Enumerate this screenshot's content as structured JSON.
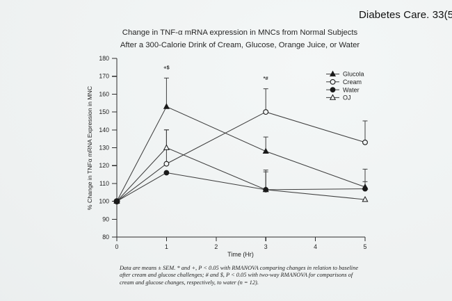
{
  "colors": {
    "background": "#eef1f1",
    "ink": "#1a1a1a",
    "axis": "#2b2b2b",
    "line": "#3e3e3e",
    "open_marker_fill": "#f1f4f4"
  },
  "header": {
    "citation": "Diabetes Care. 33(5"
  },
  "title": {
    "line1": "Change in TNF-α mRNA expression in MNCs from Normal Subjects",
    "line2": "After a 300-Calorie Drink of Cream, Glucose, Orange Juice, or Water"
  },
  "chart_data": {
    "type": "line",
    "x": [
      0,
      1,
      3,
      5
    ],
    "xlabel": "Time (Hr)",
    "ylabel": "% Change in TNFα mRNA Expression in MNC",
    "xlim": [
      0,
      5
    ],
    "ylim": [
      80,
      180
    ],
    "xticks": [
      0,
      1,
      2,
      3,
      4,
      5
    ],
    "yticks": [
      80,
      90,
      100,
      110,
      120,
      130,
      140,
      150,
      160,
      170,
      180
    ],
    "grid": false,
    "legend_position": "top-right",
    "legend": [
      {
        "label": "Glucola",
        "marker": "triangle-filled"
      },
      {
        "label": "Cream",
        "marker": "circle-open"
      },
      {
        "label": "Water",
        "marker": "circle-filled"
      },
      {
        "label": "OJ",
        "marker": "triangle-open"
      }
    ],
    "series": [
      {
        "name": "Glucola",
        "marker": "triangle-filled",
        "values": [
          100,
          153,
          128,
          108
        ],
        "err_up": [
          0,
          16,
          8,
          10
        ]
      },
      {
        "name": "Cream",
        "marker": "circle-open",
        "values": [
          100,
          121,
          150,
          133
        ],
        "err_up": [
          0,
          19,
          13,
          12
        ]
      },
      {
        "name": "OJ",
        "marker": "triangle-open",
        "values": [
          100,
          130,
          106.5,
          101
        ],
        "err_up": [
          0,
          10,
          10,
          0
        ]
      },
      {
        "name": "Water",
        "marker": "circle-filled",
        "values": [
          100,
          116,
          106.5,
          107
        ],
        "err_up": [
          0,
          0,
          11,
          4
        ]
      }
    ],
    "baseline_marker": {
      "x": 0,
      "y": 100
    },
    "annotations": [
      {
        "text": "+$",
        "x": 1,
        "y": 174
      },
      {
        "text": "*#",
        "x": 3,
        "y": 168
      }
    ]
  },
  "footnote": {
    "line1": "Data are means ± SEM. * and +, P < 0.05 with RMANOVA comparing changes in relation to baseline",
    "line2": "after cream and glucose challenges; # and $, P < 0.05 with two-way RMANOVA for comparisons of",
    "line3": "cream and glucose changes, respectively, to water (n = 12)."
  }
}
